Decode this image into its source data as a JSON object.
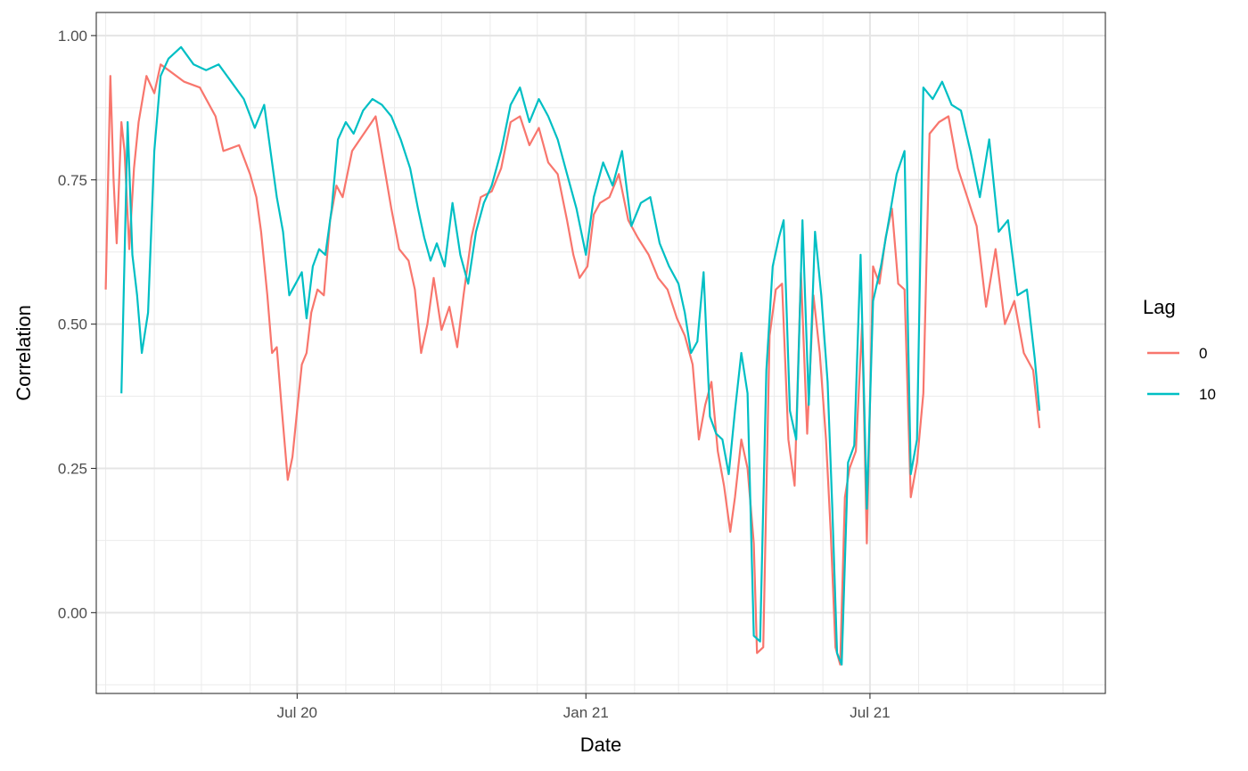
{
  "chart_data": {
    "type": "line",
    "xlabel": "Date",
    "ylabel": "Correlation",
    "x_tick_labels": [
      "Jul 20",
      "Jan 21",
      "Jul 21"
    ],
    "x_tick_dates": [
      "2020-07-01",
      "2021-01-01",
      "2021-07-01"
    ],
    "xlim": [
      "2020-02-24",
      "2021-11-28"
    ],
    "ylim": [
      -0.14,
      1.04
    ],
    "y_ticks": [
      0.0,
      0.25,
      0.5,
      0.75,
      1.0
    ],
    "y_tick_labels": [
      "0.00",
      "0.25",
      "0.50",
      "0.75",
      "1.00"
    ],
    "grid": true,
    "legend": {
      "title": "Lag",
      "position": "right"
    },
    "series": [
      {
        "name": "0",
        "color": "#F8766D",
        "points": [
          [
            "2020-03-01",
            0.56
          ],
          [
            "2020-03-04",
            0.93
          ],
          [
            "2020-03-06",
            0.75
          ],
          [
            "2020-03-08",
            0.64
          ],
          [
            "2020-03-11",
            0.85
          ],
          [
            "2020-03-13",
            0.8
          ],
          [
            "2020-03-16",
            0.63
          ],
          [
            "2020-03-19",
            0.77
          ],
          [
            "2020-03-22",
            0.85
          ],
          [
            "2020-03-27",
            0.93
          ],
          [
            "2020-04-01",
            0.9
          ],
          [
            "2020-04-05",
            0.95
          ],
          [
            "2020-04-10",
            0.94
          ],
          [
            "2020-04-20",
            0.92
          ],
          [
            "2020-04-30",
            0.91
          ],
          [
            "2020-05-10",
            0.86
          ],
          [
            "2020-05-15",
            0.8
          ],
          [
            "2020-05-25",
            0.81
          ],
          [
            "2020-06-01",
            0.76
          ],
          [
            "2020-06-05",
            0.72
          ],
          [
            "2020-06-08",
            0.66
          ],
          [
            "2020-06-12",
            0.55
          ],
          [
            "2020-06-15",
            0.45
          ],
          [
            "2020-06-18",
            0.46
          ],
          [
            "2020-06-21",
            0.36
          ],
          [
            "2020-06-25",
            0.23
          ],
          [
            "2020-06-28",
            0.27
          ],
          [
            "2020-07-01",
            0.35
          ],
          [
            "2020-07-04",
            0.43
          ],
          [
            "2020-07-07",
            0.45
          ],
          [
            "2020-07-10",
            0.52
          ],
          [
            "2020-07-14",
            0.56
          ],
          [
            "2020-07-18",
            0.55
          ],
          [
            "2020-07-22",
            0.68
          ],
          [
            "2020-07-26",
            0.74
          ],
          [
            "2020-07-30",
            0.72
          ],
          [
            "2020-08-05",
            0.8
          ],
          [
            "2020-08-10",
            0.82
          ],
          [
            "2020-08-15",
            0.84
          ],
          [
            "2020-08-20",
            0.86
          ],
          [
            "2020-08-25",
            0.78
          ],
          [
            "2020-08-30",
            0.7
          ],
          [
            "2020-09-04",
            0.63
          ],
          [
            "2020-09-10",
            0.61
          ],
          [
            "2020-09-14",
            0.56
          ],
          [
            "2020-09-18",
            0.45
          ],
          [
            "2020-09-22",
            0.5
          ],
          [
            "2020-09-26",
            0.58
          ],
          [
            "2020-10-01",
            0.49
          ],
          [
            "2020-10-06",
            0.53
          ],
          [
            "2020-10-11",
            0.46
          ],
          [
            "2020-10-15",
            0.55
          ],
          [
            "2020-10-20",
            0.65
          ],
          [
            "2020-10-26",
            0.72
          ],
          [
            "2020-11-02",
            0.73
          ],
          [
            "2020-11-08",
            0.77
          ],
          [
            "2020-11-14",
            0.85
          ],
          [
            "2020-11-20",
            0.86
          ],
          [
            "2020-11-26",
            0.81
          ],
          [
            "2020-12-02",
            0.84
          ],
          [
            "2020-12-08",
            0.78
          ],
          [
            "2020-12-14",
            0.76
          ],
          [
            "2020-12-20",
            0.68
          ],
          [
            "2020-12-24",
            0.62
          ],
          [
            "2020-12-28",
            0.58
          ],
          [
            "2021-01-02",
            0.6
          ],
          [
            "2021-01-06",
            0.69
          ],
          [
            "2021-01-10",
            0.71
          ],
          [
            "2021-01-16",
            0.72
          ],
          [
            "2021-01-22",
            0.76
          ],
          [
            "2021-01-28",
            0.68
          ],
          [
            "2021-02-03",
            0.65
          ],
          [
            "2021-02-10",
            0.62
          ],
          [
            "2021-02-16",
            0.58
          ],
          [
            "2021-02-22",
            0.56
          ],
          [
            "2021-02-28",
            0.51
          ],
          [
            "2021-03-05",
            0.48
          ],
          [
            "2021-03-10",
            0.43
          ],
          [
            "2021-03-14",
            0.3
          ],
          [
            "2021-03-18",
            0.36
          ],
          [
            "2021-03-22",
            0.4
          ],
          [
            "2021-03-26",
            0.28
          ],
          [
            "2021-03-30",
            0.22
          ],
          [
            "2021-04-03",
            0.14
          ],
          [
            "2021-04-06",
            0.2
          ],
          [
            "2021-04-10",
            0.3
          ],
          [
            "2021-04-14",
            0.25
          ],
          [
            "2021-04-18",
            0.12
          ],
          [
            "2021-04-20",
            -0.07
          ],
          [
            "2021-04-24",
            -0.06
          ],
          [
            "2021-04-28",
            0.48
          ],
          [
            "2021-05-02",
            0.56
          ],
          [
            "2021-05-06",
            0.57
          ],
          [
            "2021-05-10",
            0.3
          ],
          [
            "2021-05-14",
            0.22
          ],
          [
            "2021-05-18",
            0.59
          ],
          [
            "2021-05-22",
            0.31
          ],
          [
            "2021-05-26",
            0.55
          ],
          [
            "2021-05-30",
            0.45
          ],
          [
            "2021-06-03",
            0.3
          ],
          [
            "2021-06-06",
            0.14
          ],
          [
            "2021-06-09",
            -0.06
          ],
          [
            "2021-06-12",
            -0.09
          ],
          [
            "2021-06-15",
            0.2
          ],
          [
            "2021-06-18",
            0.25
          ],
          [
            "2021-06-22",
            0.28
          ],
          [
            "2021-06-26",
            0.5
          ],
          [
            "2021-06-29",
            0.12
          ],
          [
            "2021-07-03",
            0.6
          ],
          [
            "2021-07-07",
            0.57
          ],
          [
            "2021-07-11",
            0.65
          ],
          [
            "2021-07-15",
            0.7
          ],
          [
            "2021-07-19",
            0.57
          ],
          [
            "2021-07-23",
            0.56
          ],
          [
            "2021-07-27",
            0.2
          ],
          [
            "2021-07-31",
            0.26
          ],
          [
            "2021-08-04",
            0.38
          ],
          [
            "2021-08-08",
            0.83
          ],
          [
            "2021-08-14",
            0.85
          ],
          [
            "2021-08-20",
            0.86
          ],
          [
            "2021-08-26",
            0.77
          ],
          [
            "2021-09-01",
            0.72
          ],
          [
            "2021-09-07",
            0.67
          ],
          [
            "2021-09-13",
            0.53
          ],
          [
            "2021-09-19",
            0.63
          ],
          [
            "2021-09-25",
            0.5
          ],
          [
            "2021-10-01",
            0.54
          ],
          [
            "2021-10-07",
            0.45
          ],
          [
            "2021-10-13",
            0.42
          ],
          [
            "2021-10-17",
            0.32
          ]
        ]
      },
      {
        "name": "10",
        "color": "#00BFC4",
        "points": [
          [
            "2020-03-11",
            0.38
          ],
          [
            "2020-03-15",
            0.85
          ],
          [
            "2020-03-18",
            0.62
          ],
          [
            "2020-03-21",
            0.55
          ],
          [
            "2020-03-24",
            0.45
          ],
          [
            "2020-03-28",
            0.52
          ],
          [
            "2020-04-01",
            0.8
          ],
          [
            "2020-04-05",
            0.93
          ],
          [
            "2020-04-10",
            0.96
          ],
          [
            "2020-04-18",
            0.98
          ],
          [
            "2020-04-26",
            0.95
          ],
          [
            "2020-05-04",
            0.94
          ],
          [
            "2020-05-12",
            0.95
          ],
          [
            "2020-05-20",
            0.92
          ],
          [
            "2020-05-28",
            0.89
          ],
          [
            "2020-06-04",
            0.84
          ],
          [
            "2020-06-10",
            0.88
          ],
          [
            "2020-06-15",
            0.78
          ],
          [
            "2020-06-18",
            0.72
          ],
          [
            "2020-06-22",
            0.66
          ],
          [
            "2020-06-26",
            0.55
          ],
          [
            "2020-06-30",
            0.57
          ],
          [
            "2020-07-04",
            0.59
          ],
          [
            "2020-07-07",
            0.51
          ],
          [
            "2020-07-11",
            0.6
          ],
          [
            "2020-07-15",
            0.63
          ],
          [
            "2020-07-19",
            0.62
          ],
          [
            "2020-07-23",
            0.7
          ],
          [
            "2020-07-27",
            0.82
          ],
          [
            "2020-08-01",
            0.85
          ],
          [
            "2020-08-06",
            0.83
          ],
          [
            "2020-08-12",
            0.87
          ],
          [
            "2020-08-18",
            0.89
          ],
          [
            "2020-08-24",
            0.88
          ],
          [
            "2020-08-30",
            0.86
          ],
          [
            "2020-09-05",
            0.82
          ],
          [
            "2020-09-11",
            0.77
          ],
          [
            "2020-09-16",
            0.7
          ],
          [
            "2020-09-20",
            0.65
          ],
          [
            "2020-09-24",
            0.61
          ],
          [
            "2020-09-28",
            0.64
          ],
          [
            "2020-10-03",
            0.6
          ],
          [
            "2020-10-08",
            0.71
          ],
          [
            "2020-10-13",
            0.62
          ],
          [
            "2020-10-18",
            0.57
          ],
          [
            "2020-10-23",
            0.66
          ],
          [
            "2020-10-28",
            0.71
          ],
          [
            "2020-11-02",
            0.74
          ],
          [
            "2020-11-08",
            0.8
          ],
          [
            "2020-11-14",
            0.88
          ],
          [
            "2020-11-20",
            0.91
          ],
          [
            "2020-11-26",
            0.85
          ],
          [
            "2020-12-02",
            0.89
          ],
          [
            "2020-12-08",
            0.86
          ],
          [
            "2020-12-14",
            0.82
          ],
          [
            "2020-12-20",
            0.76
          ],
          [
            "2020-12-26",
            0.7
          ],
          [
            "2021-01-01",
            0.62
          ],
          [
            "2021-01-06",
            0.72
          ],
          [
            "2021-01-12",
            0.78
          ],
          [
            "2021-01-18",
            0.74
          ],
          [
            "2021-01-24",
            0.8
          ],
          [
            "2021-01-30",
            0.67
          ],
          [
            "2021-02-05",
            0.71
          ],
          [
            "2021-02-11",
            0.72
          ],
          [
            "2021-02-17",
            0.64
          ],
          [
            "2021-02-23",
            0.6
          ],
          [
            "2021-03-01",
            0.57
          ],
          [
            "2021-03-05",
            0.52
          ],
          [
            "2021-03-09",
            0.45
          ],
          [
            "2021-03-13",
            0.47
          ],
          [
            "2021-03-17",
            0.59
          ],
          [
            "2021-03-21",
            0.34
          ],
          [
            "2021-03-25",
            0.31
          ],
          [
            "2021-03-29",
            0.3
          ],
          [
            "2021-04-02",
            0.24
          ],
          [
            "2021-04-06",
            0.35
          ],
          [
            "2021-04-10",
            0.45
          ],
          [
            "2021-04-14",
            0.38
          ],
          [
            "2021-04-18",
            -0.04
          ],
          [
            "2021-04-22",
            -0.05
          ],
          [
            "2021-04-26",
            0.42
          ],
          [
            "2021-04-30",
            0.6
          ],
          [
            "2021-05-04",
            0.65
          ],
          [
            "2021-05-07",
            0.68
          ],
          [
            "2021-05-11",
            0.35
          ],
          [
            "2021-05-15",
            0.3
          ],
          [
            "2021-05-19",
            0.68
          ],
          [
            "2021-05-23",
            0.36
          ],
          [
            "2021-05-27",
            0.66
          ],
          [
            "2021-05-31",
            0.55
          ],
          [
            "2021-06-04",
            0.4
          ],
          [
            "2021-06-07",
            0.18
          ],
          [
            "2021-06-10",
            -0.07
          ],
          [
            "2021-06-13",
            -0.09
          ],
          [
            "2021-06-17",
            0.26
          ],
          [
            "2021-06-21",
            0.29
          ],
          [
            "2021-06-25",
            0.62
          ],
          [
            "2021-06-29",
            0.18
          ],
          [
            "2021-07-03",
            0.54
          ],
          [
            "2021-07-08",
            0.6
          ],
          [
            "2021-07-13",
            0.68
          ],
          [
            "2021-07-18",
            0.76
          ],
          [
            "2021-07-23",
            0.8
          ],
          [
            "2021-07-27",
            0.24
          ],
          [
            "2021-07-31",
            0.3
          ],
          [
            "2021-08-04",
            0.91
          ],
          [
            "2021-08-10",
            0.89
          ],
          [
            "2021-08-16",
            0.92
          ],
          [
            "2021-08-22",
            0.88
          ],
          [
            "2021-08-28",
            0.87
          ],
          [
            "2021-09-03",
            0.8
          ],
          [
            "2021-09-09",
            0.72
          ],
          [
            "2021-09-15",
            0.82
          ],
          [
            "2021-09-21",
            0.66
          ],
          [
            "2021-09-27",
            0.68
          ],
          [
            "2021-10-03",
            0.55
          ],
          [
            "2021-10-09",
            0.56
          ],
          [
            "2021-10-14",
            0.44
          ],
          [
            "2021-10-17",
            0.35
          ]
        ]
      }
    ]
  }
}
